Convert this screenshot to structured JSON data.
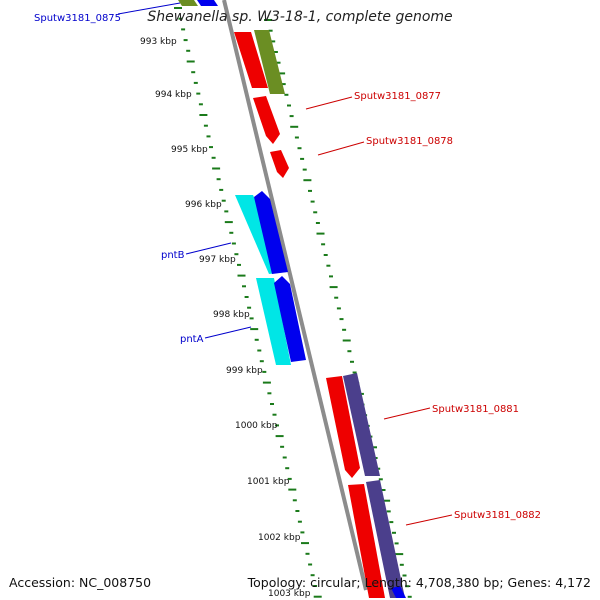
{
  "title": "Shewanella sp. W3-18-1, complete genome",
  "accession_text": "Accession: NC_008750",
  "summary_text": "Topology: circular; Length: 4,708,380 bp; Genes: 4,172",
  "colors": {
    "backbone": "#8c8c8c",
    "tick": "#1a7a1a",
    "label_blue": "#0000cc",
    "label_red": "#cc0000",
    "gene_red": "#ee0000",
    "gene_blue": "#0000ee",
    "gene_cyan": "#00e6e6",
    "gene_olive": "#6b8e23",
    "gene_purple": "#4b3f8c"
  },
  "position_labels": [
    "993 kbp",
    "994 kbp",
    "995 kbp",
    "996 kbp",
    "997 kbp",
    "998 kbp",
    "999 kbp",
    "1000 kbp",
    "1001 kbp",
    "1002 kbp",
    "1003 kbp"
  ],
  "gene_labels": [
    {
      "text": "Sputw3181_0875",
      "color": "blue"
    },
    {
      "text": "Sputw3181_0877",
      "color": "red"
    },
    {
      "text": "Sputw3181_0878",
      "color": "red"
    },
    {
      "text": "pntB",
      "color": "blue"
    },
    {
      "text": "pntA",
      "color": "blue"
    },
    {
      "text": "Sputw3181_0881",
      "color": "red"
    },
    {
      "text": "Sputw3181_0882",
      "color": "red"
    }
  ]
}
